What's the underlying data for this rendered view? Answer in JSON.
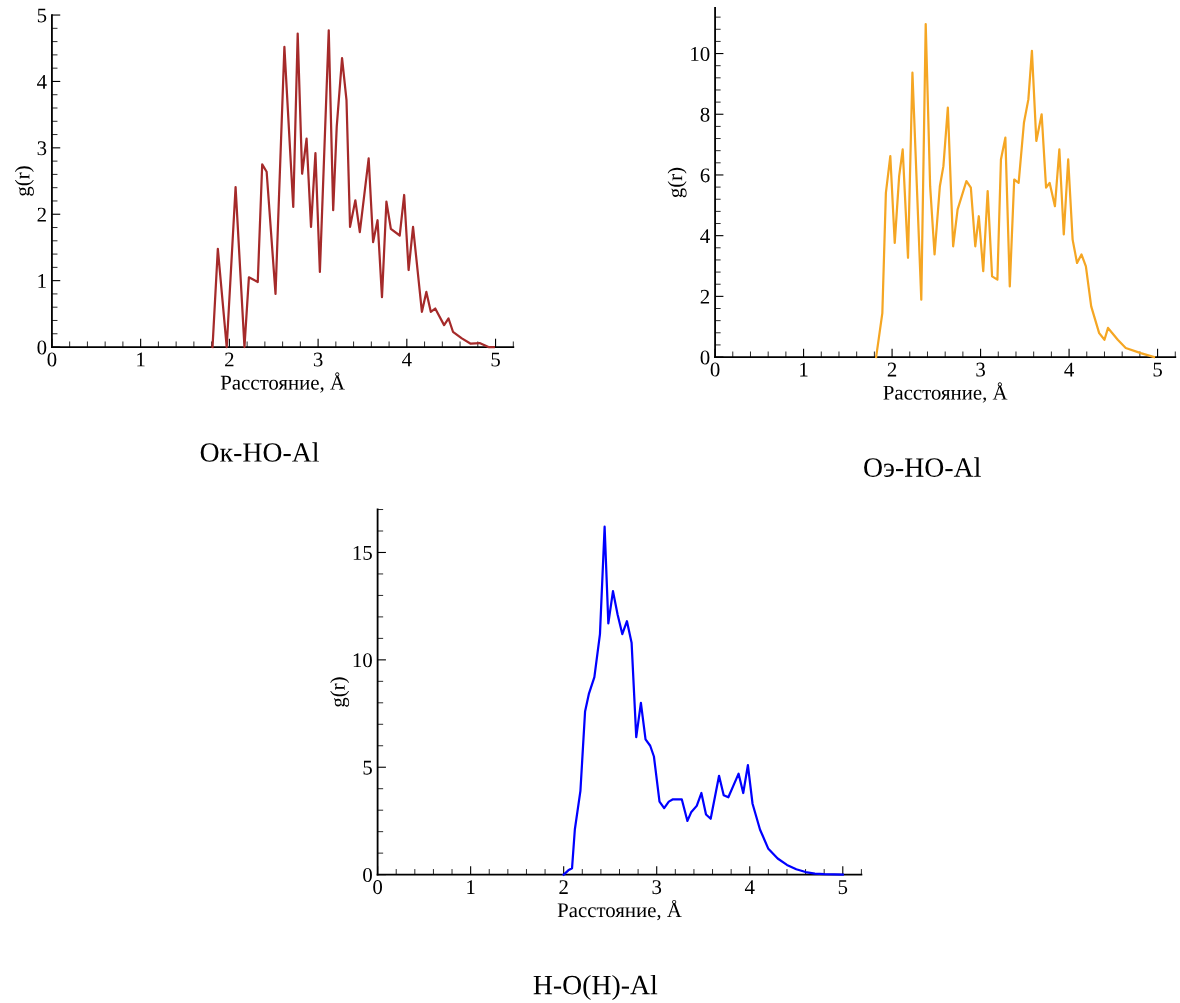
{
  "chart_data": [
    {
      "type": "line",
      "title": "Ок-HO-Al",
      "xlabel": "Расстояние, Å",
      "ylabel": "g(r)",
      "xlim": [
        0,
        5.2
      ],
      "ylim": [
        0,
        5
      ],
      "xticks": [
        0,
        1,
        2,
        3,
        4,
        5
      ],
      "yticks": [
        0,
        1,
        2,
        3,
        4,
        5
      ],
      "grid": false,
      "legend": false,
      "marker": "none",
      "line_style": "solid",
      "series": [
        {
          "color": "#a52a2a",
          "x": [
            1.81,
            1.87,
            1.97,
            2.07,
            2.17,
            2.22,
            2.32,
            2.37,
            2.42,
            2.52,
            2.62,
            2.72,
            2.77,
            2.82,
            2.87,
            2.92,
            2.97,
            3.02,
            3.12,
            3.17,
            3.21,
            3.27,
            3.32,
            3.36,
            3.42,
            3.47,
            3.57,
            3.62,
            3.67,
            3.72,
            3.77,
            3.82,
            3.92,
            3.97,
            4.02,
            4.07,
            4.17,
            4.22,
            4.27,
            4.32,
            4.42,
            4.47,
            4.52,
            4.62,
            4.72,
            4.82,
            4.92,
            4.98
          ],
          "values": [
            0,
            1.48,
            0,
            2.41,
            0,
            1.05,
            0.98,
            2.75,
            2.64,
            0.8,
            4.52,
            2.11,
            4.72,
            2.61,
            3.14,
            1.81,
            2.92,
            1.13,
            4.77,
            2.06,
            3.32,
            4.35,
            3.72,
            1.81,
            2.21,
            1.73,
            2.84,
            1.58,
            1.91,
            0.75,
            2.19,
            1.78,
            1.68,
            2.29,
            1.16,
            1.81,
            0.53,
            0.83,
            0.53,
            0.58,
            0.33,
            0.43,
            0.23,
            0.13,
            0.05,
            0.06,
            0,
            0
          ]
        }
      ]
    },
    {
      "type": "line",
      "title": "Оэ-НО-Al",
      "xlabel": "Расстояние, Å",
      "ylabel": "g(r)",
      "xlim": [
        0,
        5.2
      ],
      "ylim": [
        0,
        11.5
      ],
      "xticks": [
        0,
        1,
        2,
        3,
        4,
        5
      ],
      "yticks": [
        0,
        2,
        4,
        6,
        8,
        10
      ],
      "grid": false,
      "legend": false,
      "marker": "none",
      "line_style": "solid",
      "series": [
        {
          "color": "#f5a623",
          "x": [
            1.82,
            1.89,
            1.93,
            1.98,
            2.03,
            2.08,
            2.12,
            2.18,
            2.23,
            2.28,
            2.33,
            2.38,
            2.43,
            2.48,
            2.54,
            2.58,
            2.63,
            2.69,
            2.74,
            2.84,
            2.89,
            2.94,
            2.98,
            3.03,
            3.08,
            3.13,
            3.19,
            3.23,
            3.28,
            3.33,
            3.38,
            3.43,
            3.49,
            3.54,
            3.58,
            3.63,
            3.69,
            3.74,
            3.78,
            3.84,
            3.89,
            3.94,
            3.99,
            4.04,
            4.09,
            4.14,
            4.19,
            4.25,
            4.34,
            4.4,
            4.44,
            4.55,
            4.64,
            4.81,
            4.96
          ],
          "values": [
            0,
            1.45,
            5.41,
            6.62,
            3.76,
            5.96,
            6.84,
            3.27,
            9.37,
            5.63,
            1.89,
            10.97,
            5.63,
            3.38,
            5.63,
            6.29,
            8.22,
            3.65,
            4.86,
            5.8,
            5.58,
            3.65,
            4.64,
            2.83,
            5.47,
            2.66,
            2.55,
            6.51,
            7.23,
            2.33,
            5.85,
            5.74,
            7.72,
            8.49,
            10.09,
            7.12,
            8.0,
            5.58,
            5.74,
            4.97,
            6.84,
            4.04,
            6.51,
            3.87,
            3.1,
            3.38,
            2.99,
            1.67,
            0.79,
            0.57,
            0.96,
            0.57,
            0.3,
            0.13,
            0
          ]
        }
      ]
    },
    {
      "type": "line",
      "title": "H-O(H)-Al",
      "xlabel": "Расстояние, Å",
      "ylabel": "g(r)",
      "xlim": [
        0,
        5.2
      ],
      "ylim": [
        0,
        17
      ],
      "xticks": [
        0,
        1,
        2,
        3,
        4,
        5
      ],
      "yticks": [
        0,
        5,
        10,
        15
      ],
      "grid": false,
      "legend": false,
      "marker": "none",
      "line_style": "solid",
      "series": [
        {
          "color": "#0000ff",
          "x": [
            2.0,
            2.05,
            2.09,
            2.12,
            2.18,
            2.23,
            2.27,
            2.33,
            2.39,
            2.44,
            2.48,
            2.53,
            2.58,
            2.63,
            2.68,
            2.73,
            2.78,
            2.83,
            2.88,
            2.93,
            2.97,
            3.03,
            3.08,
            3.13,
            3.17,
            3.27,
            3.33,
            3.37,
            3.43,
            3.48,
            3.53,
            3.58,
            3.67,
            3.72,
            3.77,
            3.83,
            3.88,
            3.93,
            3.98,
            4.03,
            4.11,
            4.2,
            4.3,
            4.4,
            4.5,
            4.6,
            4.7,
            4.8,
            5.0
          ],
          "values": [
            0,
            0.2,
            0.3,
            2.1,
            3.9,
            7.6,
            8.4,
            9.2,
            11.2,
            16.2,
            11.7,
            13.2,
            12.1,
            11.2,
            11.8,
            10.8,
            6.4,
            8.0,
            6.3,
            6.0,
            5.5,
            3.4,
            3.1,
            3.4,
            3.5,
            3.5,
            2.5,
            2.9,
            3.2,
            3.8,
            2.8,
            2.6,
            4.6,
            3.7,
            3.6,
            4.2,
            4.7,
            3.8,
            5.1,
            3.3,
            2.1,
            1.2,
            0.75,
            0.45,
            0.25,
            0.12,
            0.05,
            0.02,
            0
          ]
        }
      ]
    }
  ]
}
